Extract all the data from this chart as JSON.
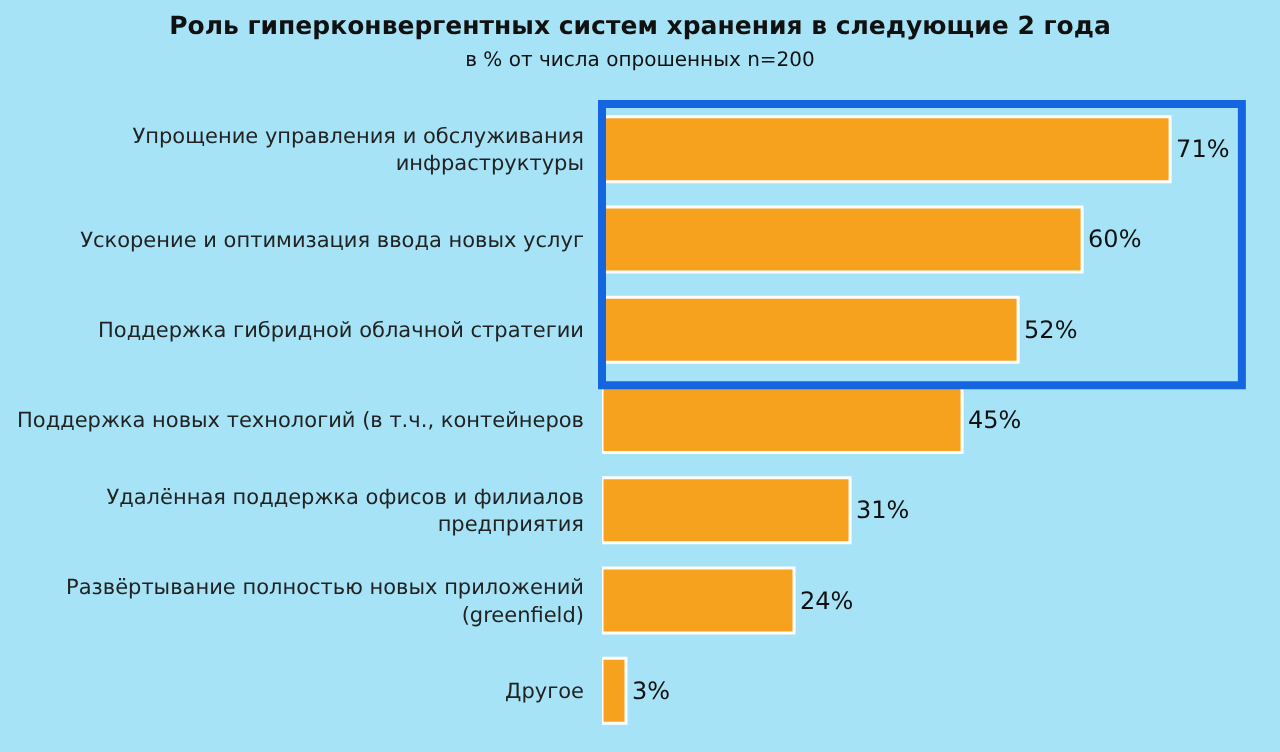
{
  "chart_data": {
    "type": "bar",
    "orientation": "horizontal",
    "title": "Роль гиперконвергентных систем хранения в следующие 2 года",
    "subtitle": "в % от числа опрошенных n=200",
    "categories": [
      "Упрощение управления и обслуживания\nинфраструктуры",
      "Ускорение и оптимизация ввода новых услуг",
      "Поддержка гибридной облачной стратегии",
      "Поддержка новых технологий (в т.ч., контейнеров",
      "Удалённая поддержка офисов и филиалов\nпредприятия",
      "Развёртывание полностью новых приложений\n(greenfield)",
      "Другое"
    ],
    "values": [
      71,
      60,
      52,
      45,
      31,
      24,
      3
    ],
    "value_labels": [
      "71%",
      "60%",
      "52%",
      "45%",
      "31%",
      "24%",
      "3%"
    ],
    "color": "#f7a21e",
    "tick_labels": "y",
    "grid": false,
    "legend": false
  }
}
